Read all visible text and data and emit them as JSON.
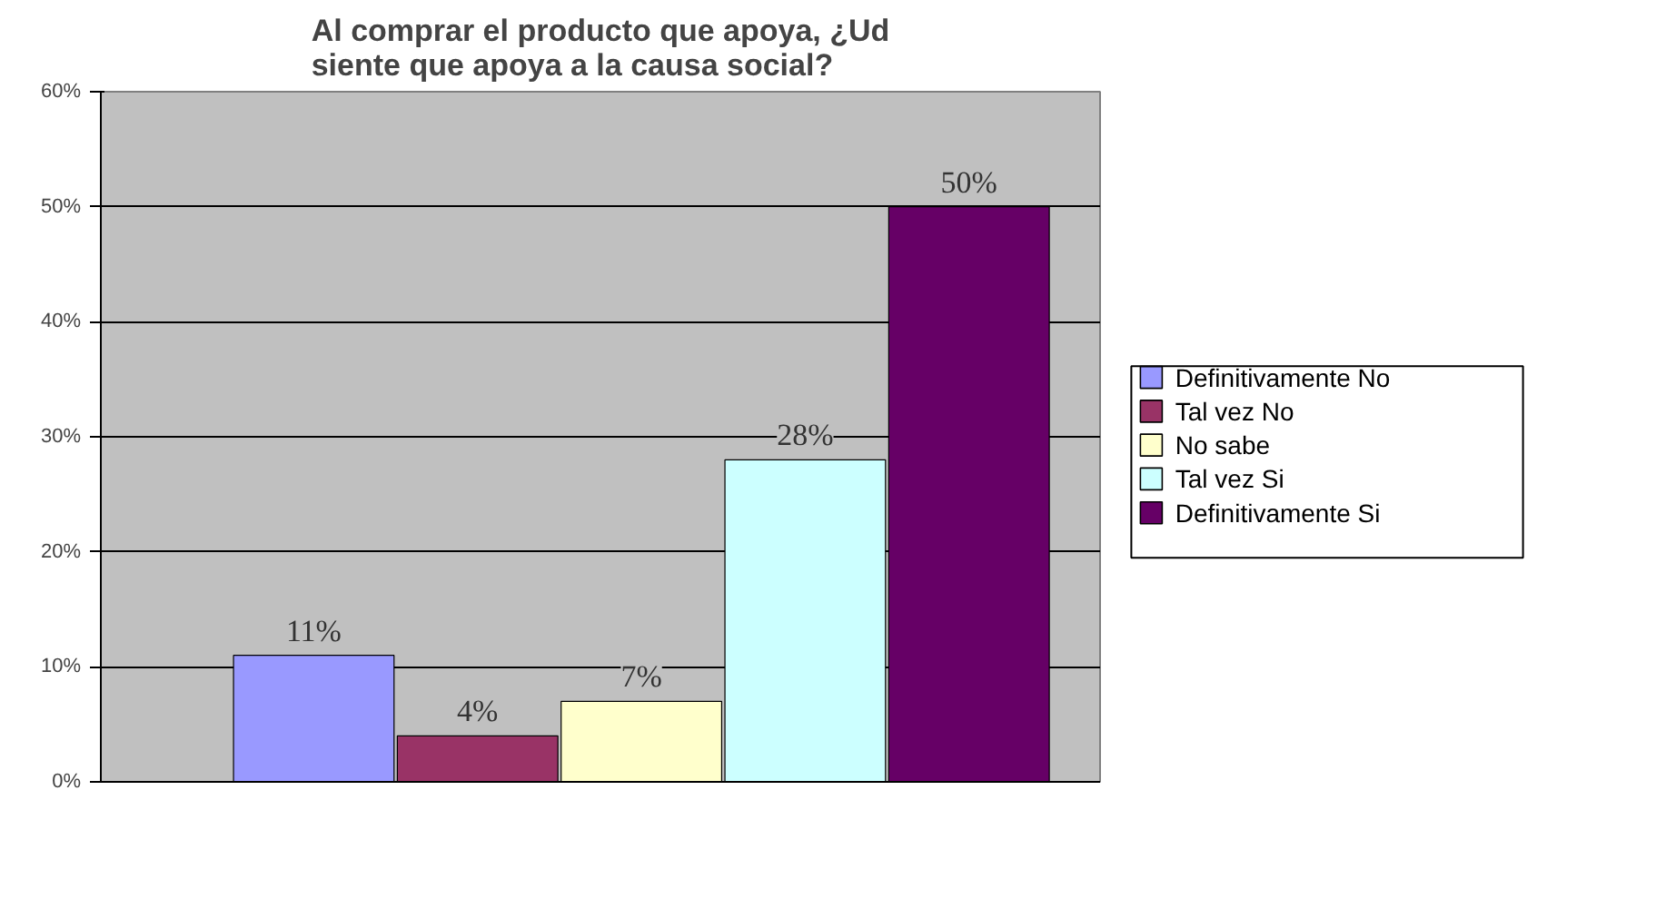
{
  "chart_data": {
    "type": "bar",
    "title": "Al comprar el producto que apoya, ¿Ud\nsiente que apoya a la causa social?",
    "categories": [
      null
    ],
    "series": [
      {
        "name": "Definitivamente No",
        "color": "#9999ff",
        "values": [
          11
        ],
        "value_labels": [
          "11%"
        ]
      },
      {
        "name": "Tal vez No",
        "color": "#993366",
        "values": [
          4
        ],
        "value_labels": [
          "4%"
        ]
      },
      {
        "name": "No sabe",
        "color": "#ffffcc",
        "values": [
          7
        ],
        "value_labels": [
          "7%"
        ]
      },
      {
        "name": "Tal vez Si",
        "color": "#ccffff",
        "values": [
          28
        ],
        "value_labels": [
          "28%"
        ]
      },
      {
        "name": "Definitivamente Si",
        "color": "#660066",
        "values": [
          50
        ],
        "value_labels": [
          "50%"
        ]
      }
    ],
    "ylim": [
      0,
      60
    ],
    "yticks": [
      {
        "value": 0,
        "label": "0%"
      },
      {
        "value": 10,
        "label": "10%"
      },
      {
        "value": 20,
        "label": "20%"
      },
      {
        "value": 30,
        "label": "30%"
      },
      {
        "value": 40,
        "label": "40%"
      },
      {
        "value": 50,
        "label": "50%"
      },
      {
        "value": 60,
        "label": "60%"
      }
    ],
    "grid": "y",
    "legend": "right",
    "tick_labels": "y"
  }
}
